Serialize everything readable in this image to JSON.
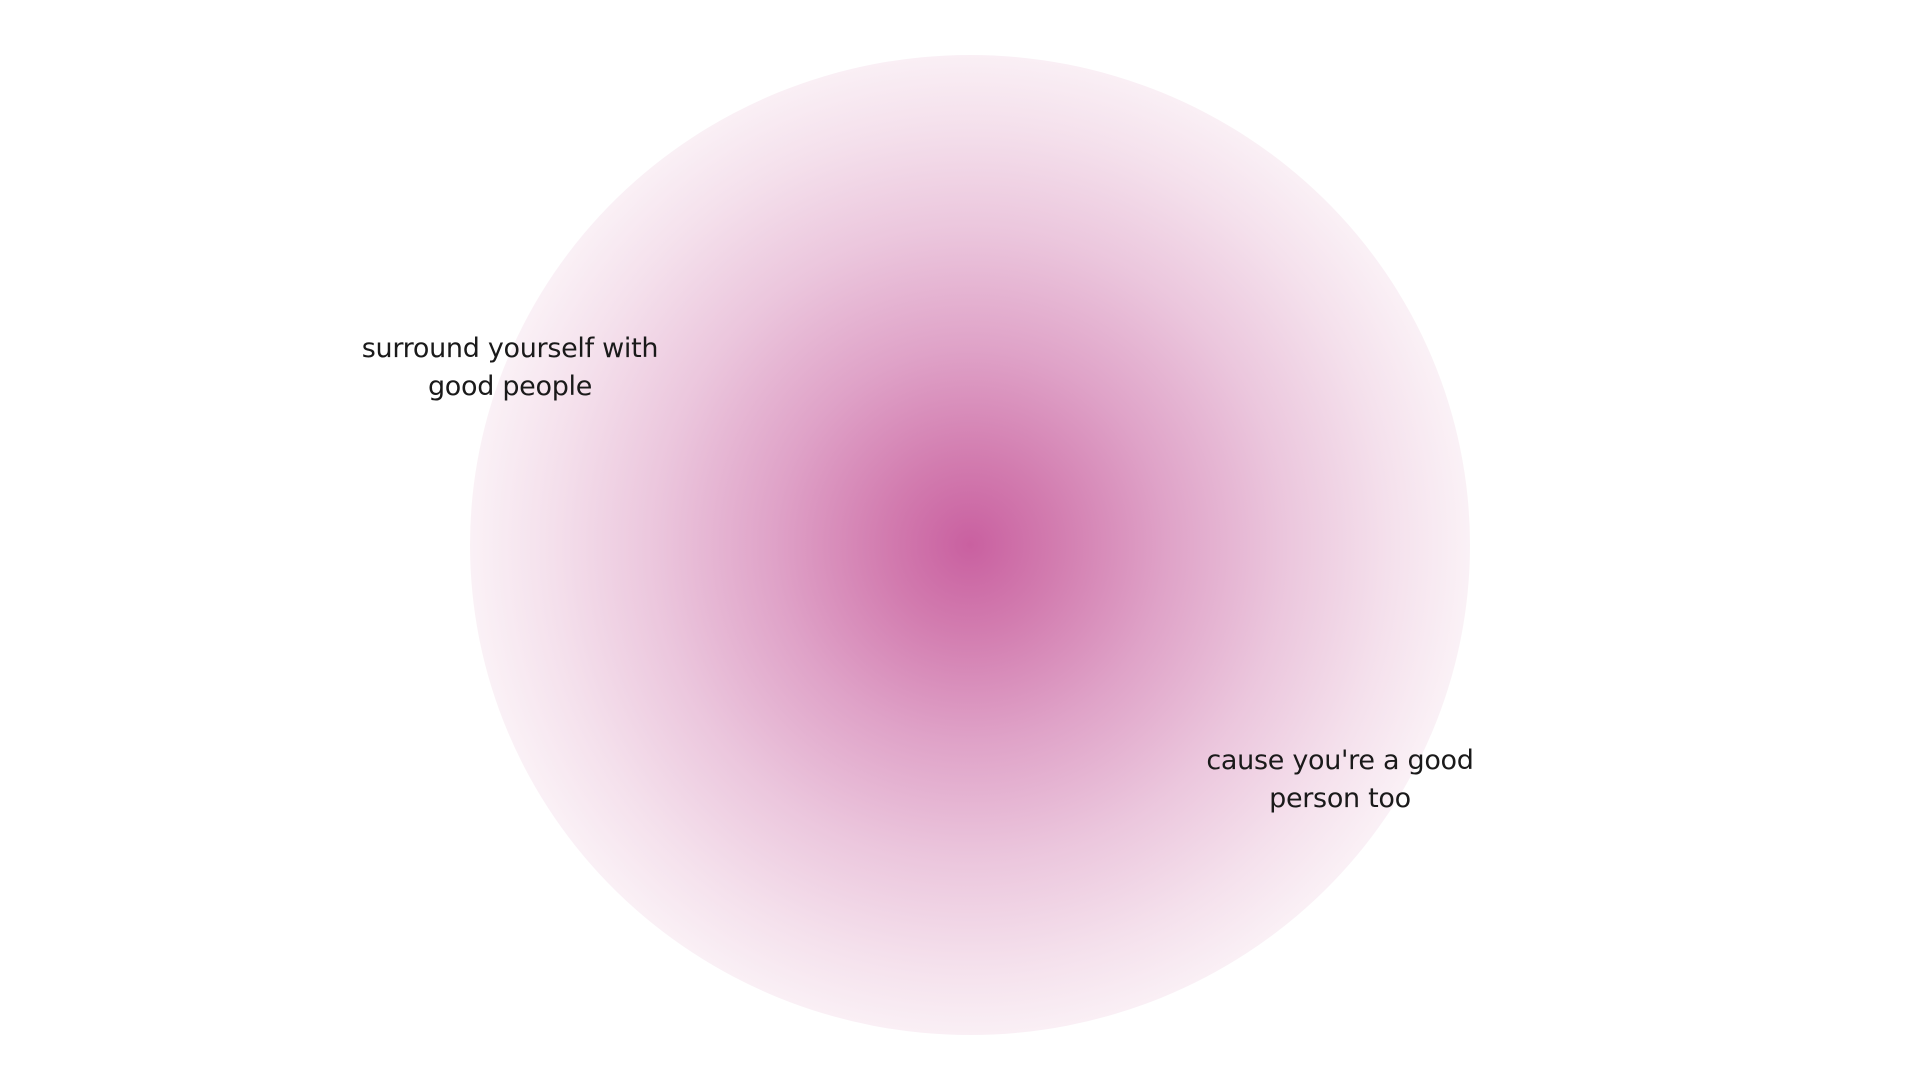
{
  "colors": {
    "background": "#ffffff",
    "glow_center": "#c960a0",
    "text": "#1a1a1a"
  },
  "quotes": {
    "left": {
      "line1": "surround yourself with",
      "line2": "good people"
    },
    "right": {
      "line1": "cause you're a good",
      "line2": "person too"
    }
  }
}
